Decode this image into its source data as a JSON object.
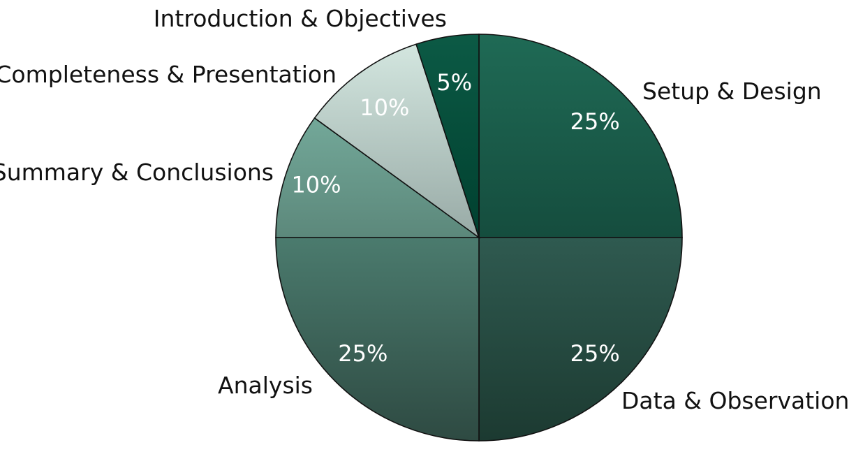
{
  "chart_data": {
    "type": "pie",
    "title": "",
    "start": "12 o'clock",
    "direction": "clockwise",
    "slices": [
      {
        "label": "Setup & Design",
        "value": 25,
        "value_label": "25%",
        "color_top": "#1f6a55",
        "color_bottom": "#154d3e"
      },
      {
        "label": "Data & Observations",
        "value": 25,
        "value_label": "25%",
        "color_top": "#2f5a50",
        "color_bottom": "#1c3a31"
      },
      {
        "label": "Analysis",
        "value": 25,
        "value_label": "25%",
        "color_top": "#4b7b6e",
        "color_bottom": "#2e4a42"
      },
      {
        "label": "Summary & Conclusions",
        "value": 10,
        "value_label": "10%",
        "color_top": "#73a899",
        "color_bottom": "#5c887b"
      },
      {
        "label": "Completeness & Presentation",
        "value": 10,
        "value_label": "10%",
        "color_top": "#d3e6df",
        "color_bottom": "#98aaa6"
      },
      {
        "label": "Introduction & Objectives",
        "value": 5,
        "value_label": "5%",
        "color_top": "#0c5a45",
        "color_bottom": "#00402f"
      }
    ]
  }
}
